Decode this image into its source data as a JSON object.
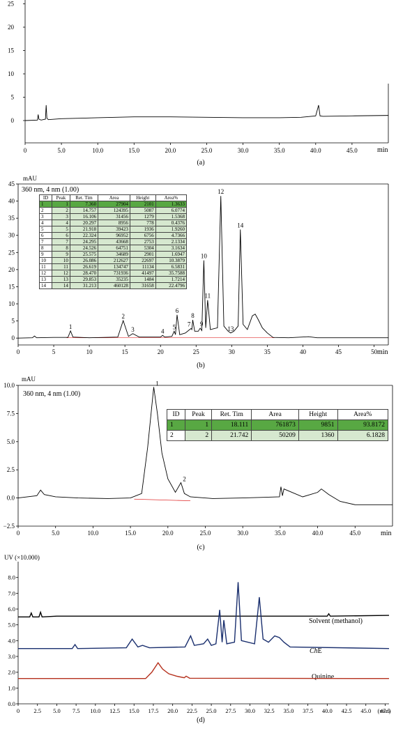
{
  "charts": {
    "a": {
      "caption": "(a)",
      "x_ticks": [
        "0",
        "5.0",
        "10.0",
        "15.0",
        "20.0",
        "25.0",
        "30.0",
        "35.0",
        "40.0",
        "45.0"
      ],
      "x_unit": "min",
      "y_ticks": [
        "0",
        "5",
        "10",
        "15",
        "20",
        "25"
      ]
    },
    "b": {
      "caption": "(b)",
      "y_unit": "mAU",
      "subtitle": "360 nm, 4 nm (1.00)",
      "x_ticks": [
        "0",
        "5",
        "10",
        "15",
        "20",
        "25",
        "30",
        "35",
        "40",
        "45",
        "50"
      ],
      "x_unit": "min",
      "y_ticks": [
        "0",
        "5",
        "10",
        "15",
        "20",
        "25",
        "30",
        "35",
        "40",
        "45"
      ],
      "table": {
        "headers": [
          "ID",
          "Peak",
          "Ret. Tim",
          "Area",
          "Height",
          "Area%"
        ],
        "rows": [
          [
            "1",
            "1",
            "7.360",
            "27904",
            "2101",
            "1.3633"
          ],
          [
            "2",
            "2",
            "14.757",
            "124395",
            "5087",
            "6.0774"
          ],
          [
            "3",
            "3",
            "16.106",
            "31456",
            "1279",
            "1.5368"
          ],
          [
            "4",
            "4",
            "20.297",
            "8956",
            "778",
            "0.4376"
          ],
          [
            "5",
            "5",
            "21.918",
            "39423",
            "1936",
            "1.9260"
          ],
          [
            "6",
            "6",
            "22.324",
            "96952",
            "6756",
            "4.7366"
          ],
          [
            "7",
            "7",
            "24.295",
            "43668",
            "2753",
            "2.1334"
          ],
          [
            "8",
            "8",
            "24.526",
            "64751",
            "5304",
            "3.1634"
          ],
          [
            "9",
            "9",
            "25.575",
            "34689",
            "2901",
            "1.6947"
          ],
          [
            "10",
            "10",
            "26.086",
            "212627",
            "22697",
            "10.3879"
          ],
          [
            "11",
            "11",
            "26.619",
            "134747",
            "11134",
            "6.5831"
          ],
          [
            "12",
            "12",
            "28.470",
            "731936",
            "41497",
            "35.7588"
          ],
          [
            "13",
            "13",
            "29.853",
            "35235",
            "1484",
            "1.7214"
          ],
          [
            "14",
            "14",
            "31.213",
            "460128",
            "31658",
            "22.4796"
          ]
        ]
      },
      "peak_labels": [
        "1",
        "2",
        "3",
        "4",
        "5",
        "6",
        "7",
        "8",
        "9",
        "10",
        "11",
        "12",
        "13",
        "14"
      ]
    },
    "c": {
      "caption": "(c)",
      "y_unit": "mAU",
      "subtitle": "360 nm, 4 nm (1.00)",
      "x_ticks": [
        "0",
        "5.0",
        "10.0",
        "15.0",
        "20.0",
        "25.0",
        "30.0",
        "35.0",
        "40.0",
        "45.0"
      ],
      "x_unit": "min",
      "y_ticks": [
        "−2.5",
        "0.0",
        "2.5",
        "5.0",
        "7.5",
        "10.0"
      ],
      "table": {
        "headers": [
          "ID",
          "Peak",
          "Ret. Tim",
          "Area",
          "Height",
          "Area%"
        ],
        "rows": [
          [
            "1",
            "1",
            "18.111",
            "761873",
            "9851",
            "93.8172"
          ],
          [
            "2",
            "2",
            "21.742",
            "50209",
            "1360",
            "6.1828"
          ]
        ]
      },
      "peak_labels": [
        "1",
        "2"
      ]
    },
    "d": {
      "caption": "(d)",
      "y_unit": "UV (×10.000)",
      "x_ticks": [
        "0",
        "2.5",
        "5.0",
        "7.5",
        "10.0",
        "12.5",
        "15.0",
        "17.5",
        "20.0",
        "22.5",
        "25.0",
        "27.5",
        "30.0",
        "32.5",
        "35.0",
        "37.5",
        "40.0",
        "42.5",
        "45.0",
        "47.5",
        "(min)"
      ],
      "y_ticks": [
        "0.0",
        "1.0",
        "2.0",
        "3.0",
        "4.0",
        "5.0",
        "6.0",
        "7.0",
        "8.0"
      ],
      "trace_labels": {
        "solvent": "Solvent (methanol)",
        "che_prefix": "",
        "che_italic": "Ch",
        "che_suffix": "E",
        "quinine": "Quinine"
      }
    }
  },
  "colors": {
    "axis": "#000000",
    "trace": "#000000",
    "baseline": "#e03030",
    "che_trace": "#1a2f6e",
    "quinine_trace": "#b5301c",
    "table_selected": "#58a843",
    "table_cell": "#d6e8cf"
  },
  "chart_data": [
    {
      "type": "line",
      "panel": "a",
      "x_range": [
        0,
        50
      ],
      "y_range": [
        -3,
        30
      ],
      "series": [
        {
          "x": [
            0,
            1.7,
            1.8,
            1.9,
            2.2,
            2.8,
            2.9,
            3.0,
            3.2,
            5,
            10,
            15,
            20,
            25,
            30,
            35,
            38,
            40.0,
            40.4,
            40.6,
            41,
            45,
            50
          ],
          "y": [
            0,
            0.1,
            1.3,
            0.3,
            0.1,
            0.3,
            3.3,
            0.5,
            0.2,
            0.4,
            0.6,
            0.8,
            0.8,
            0.7,
            0.6,
            0.6,
            0.7,
            1.0,
            3.3,
            1.0,
            0.9,
            1.0,
            1.1
          ]
        }
      ]
    },
    {
      "type": "line",
      "panel": "b",
      "x_range": [
        0,
        52
      ],
      "y_range": [
        -2,
        45
      ],
      "series": [
        {
          "x": [
            0,
            2,
            2.3,
            2.6,
            5,
            7.0,
            7.36,
            7.7,
            10,
            14.0,
            14.757,
            15.5,
            16.106,
            17,
            20.0,
            20.297,
            20.6,
            21.6,
            21.918,
            22.1,
            22.324,
            22.7,
            23.5,
            24.1,
            24.295,
            24.4,
            24.526,
            24.8,
            25.3,
            25.575,
            25.8,
            26.086,
            26.35,
            26.619,
            27.0,
            28.0,
            28.47,
            28.9,
            29.5,
            29.853,
            30.3,
            30.9,
            31.213,
            31.6,
            32.2,
            32.9,
            33.3,
            33.7,
            34.3,
            35.0,
            35.8,
            38,
            40.8,
            42,
            52
          ],
          "y": [
            0,
            0.1,
            0.6,
            0.1,
            0.2,
            0.2,
            2.1,
            0.3,
            0.1,
            0.3,
            5.1,
            0.5,
            1.3,
            0.3,
            0.3,
            0.8,
            0.3,
            0.5,
            2.0,
            1.0,
            6.8,
            1.0,
            1.5,
            2.5,
            2.8,
            2.5,
            5.3,
            2.0,
            2.0,
            2.9,
            2.2,
            22.7,
            3.0,
            11.1,
            2.5,
            3.0,
            41.5,
            3.5,
            2.0,
            1.5,
            2.0,
            3.5,
            31.7,
            4.0,
            2.5,
            6.5,
            7.0,
            5.5,
            3.0,
            1.5,
            0.2,
            0.1,
            0.4,
            0.1,
            0.1
          ]
        }
      ],
      "peaks": {
        "ret_time": [
          7.36,
          14.757,
          16.106,
          20.297,
          21.918,
          22.324,
          24.295,
          24.526,
          25.575,
          26.086,
          26.619,
          28.47,
          29.853,
          31.213
        ],
        "area": [
          27904,
          124395,
          31456,
          8956,
          39423,
          96952,
          43668,
          64751,
          34689,
          212627,
          134747,
          731936,
          35235,
          460128
        ],
        "height": [
          2101,
          5087,
          1279,
          778,
          1936,
          6756,
          2753,
          5304,
          2901,
          22697,
          11134,
          41497,
          1484,
          31658
        ],
        "area_percent": [
          1.3633,
          6.0774,
          1.5368,
          0.4376,
          1.926,
          4.7366,
          2.1334,
          3.1634,
          1.6947,
          10.3879,
          6.5831,
          35.7588,
          1.7214,
          22.4796
        ]
      }
    },
    {
      "type": "line",
      "panel": "c",
      "x_range": [
        0,
        50
      ],
      "y_range": [
        -2.5,
        10
      ],
      "series": [
        {
          "x": [
            0,
            2.5,
            3.0,
            3.5,
            5,
            8,
            12,
            15,
            16.5,
            17.3,
            18.111,
            18.6,
            19.2,
            20.0,
            21.0,
            21.742,
            22.2,
            23.0,
            26,
            30,
            34.9,
            35.1,
            35.3,
            35.5,
            38,
            40.0,
            40.5,
            41.5,
            43,
            45,
            50
          ],
          "y": [
            0,
            0.2,
            0.7,
            0.3,
            0.1,
            0,
            -0.05,
            0,
            0.4,
            4.5,
            9.85,
            7.5,
            4.0,
            1.7,
            0.5,
            1.36,
            0.4,
            0.1,
            -0.05,
            0,
            0.1,
            1.0,
            0.2,
            0.8,
            0.1,
            0.5,
            0.8,
            0.3,
            -0.3,
            -0.6,
            -0.6
          ]
        }
      ],
      "peaks": {
        "ret_time": [
          18.111,
          21.742
        ],
        "area": [
          761873,
          50209
        ],
        "height": [
          9851,
          1360
        ],
        "area_percent": [
          93.8172,
          6.1828
        ]
      }
    },
    {
      "type": "line",
      "panel": "d",
      "x_range": [
        0,
        48
      ],
      "y_range": [
        0,
        9
      ],
      "series": [
        {
          "name": "Solvent (methanol)",
          "x": [
            0,
            1.5,
            1.7,
            1.9,
            2.7,
            2.9,
            3.1,
            5,
            40,
            40.2,
            40.4,
            48
          ],
          "y": [
            5.5,
            5.5,
            5.75,
            5.5,
            5.5,
            5.8,
            5.5,
            5.55,
            5.55,
            5.7,
            5.55,
            5.6
          ]
        },
        {
          "name": "ChE",
          "x": [
            0,
            7.0,
            7.36,
            7.7,
            14.0,
            14.757,
            15.5,
            16.1,
            17,
            21.6,
            22.324,
            22.8,
            24.0,
            24.526,
            25.0,
            25.6,
            26.086,
            26.4,
            26.619,
            27.0,
            28.0,
            28.47,
            28.9,
            30.6,
            31.213,
            31.7,
            32.4,
            33.2,
            33.8,
            34.4,
            35.2,
            48
          ],
          "y": [
            3.5,
            3.5,
            3.75,
            3.5,
            3.55,
            4.1,
            3.6,
            3.7,
            3.55,
            3.6,
            4.3,
            3.7,
            3.8,
            4.1,
            3.7,
            3.8,
            5.95,
            3.9,
            5.3,
            3.8,
            3.9,
            7.7,
            4.0,
            3.8,
            6.75,
            4.1,
            3.9,
            4.3,
            4.2,
            3.9,
            3.6,
            3.5
          ]
        },
        {
          "name": "Quinine",
          "x": [
            0,
            16.5,
            17.3,
            18.111,
            18.7,
            19.5,
            20.5,
            21.5,
            21.742,
            22.2,
            48
          ],
          "y": [
            1.6,
            1.6,
            2.0,
            2.6,
            2.2,
            1.9,
            1.75,
            1.65,
            1.75,
            1.62,
            1.6
          ]
        }
      ]
    }
  ]
}
